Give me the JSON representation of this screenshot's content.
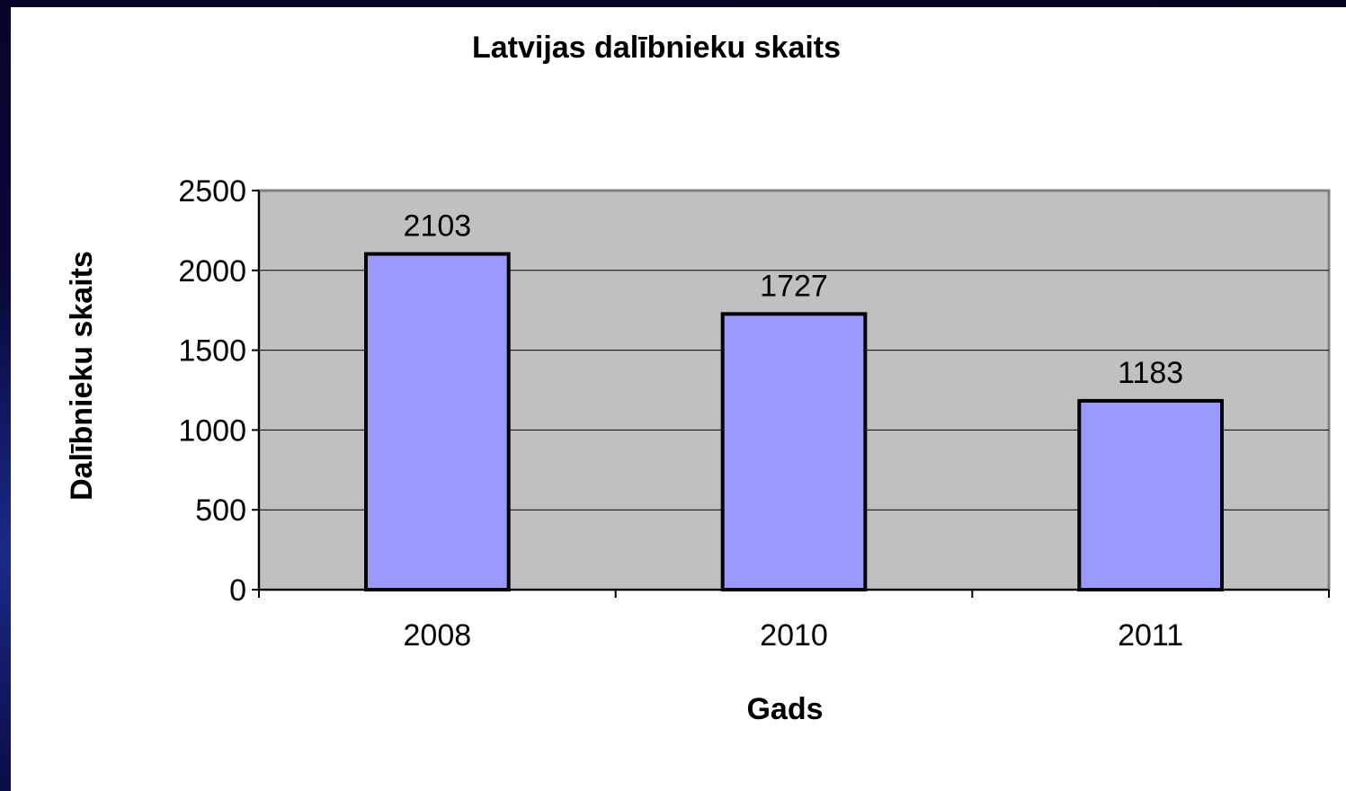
{
  "chart_data": {
    "type": "bar",
    "title": "Latvijas dalībnieku skaits",
    "xlabel": "Gads",
    "ylabel": "Dalībnieku skaits",
    "categories": [
      "2008",
      "2010",
      "2011"
    ],
    "values": [
      2103,
      1727,
      1183
    ],
    "ylim": [
      0,
      2500
    ],
    "yticks": [
      0,
      500,
      1000,
      1500,
      2000,
      2500
    ],
    "grid": true,
    "legend": "none",
    "data_labels": true
  },
  "colors": {
    "bar_fill": "#9999ff",
    "bar_stroke": "#000000",
    "plot_bg": "#c0c0c0",
    "gridline": "#000000",
    "slide_background": "#05051f"
  }
}
